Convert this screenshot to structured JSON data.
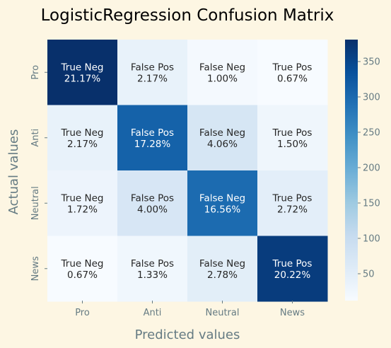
{
  "chart_data": {
    "type": "heatmap",
    "title": "LogisticRegression Confusion Matrix",
    "xlabel": "Predicted values",
    "ylabel": "Actual values",
    "x_categories": [
      "Pro",
      "Anti",
      "Neutral",
      "News"
    ],
    "y_categories": [
      "Pro",
      "Anti",
      "Neutral",
      "News"
    ],
    "cell_labels": [
      [
        "True Neg",
        "False Pos",
        "False Neg",
        "True Pos"
      ],
      [
        "True Neg",
        "False Pos",
        "False Neg",
        "True Pos"
      ],
      [
        "True Neg",
        "False Pos",
        "False Neg",
        "True Pos"
      ],
      [
        "True Neg",
        "False Pos",
        "False Neg",
        "True Pos"
      ]
    ],
    "cell_percents": [
      [
        "21.17%",
        "2.17%",
        "1.00%",
        "0.67%"
      ],
      [
        "2.17%",
        "17.28%",
        "4.06%",
        "1.50%"
      ],
      [
        "1.72%",
        "4.00%",
        "16.56%",
        "2.72%"
      ],
      [
        "0.67%",
        "1.33%",
        "2.78%",
        "20.22%"
      ]
    ],
    "values": [
      [
        381,
        39,
        18,
        12
      ],
      [
        39,
        311,
        73,
        27
      ],
      [
        31,
        72,
        298,
        49
      ],
      [
        12,
        24,
        50,
        364
      ]
    ],
    "colorbar": {
      "min": 12,
      "max": 381,
      "ticks": [
        50,
        100,
        150,
        200,
        250,
        300,
        350
      ],
      "colormap": "Blues"
    },
    "colors": {
      "background": "#fdf6e3",
      "label_text": "#657b83",
      "tick_text": "#657b83",
      "title_text": "#000000",
      "annot_dark": "#262626",
      "annot_light": "#ffffff"
    }
  }
}
